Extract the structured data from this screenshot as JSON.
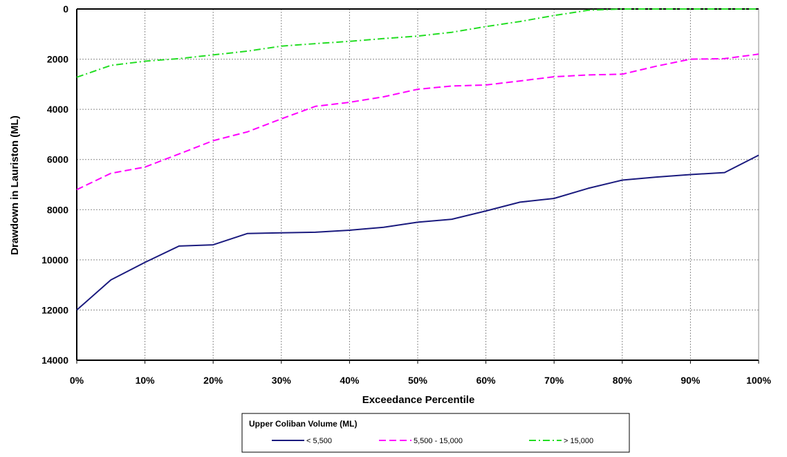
{
  "chart_data": {
    "type": "line",
    "title": "",
    "xlabel": "Exceedance Percentile",
    "ylabel": "Drawdown in  Lauriston (ML)",
    "x": [
      0,
      5,
      10,
      15,
      20,
      25,
      30,
      35,
      40,
      45,
      50,
      55,
      60,
      65,
      70,
      75,
      80,
      85,
      90,
      95,
      100
    ],
    "x_tick_values": [
      0,
      10,
      20,
      30,
      40,
      50,
      60,
      70,
      80,
      90,
      100
    ],
    "x_tick_labels": [
      "0%",
      "10%",
      "20%",
      "30%",
      "40%",
      "50%",
      "60%",
      "70%",
      "80%",
      "90%",
      "100%"
    ],
    "xlim": [
      0,
      100
    ],
    "y_tick_values": [
      0,
      2000,
      4000,
      6000,
      8000,
      10000,
      12000,
      14000
    ],
    "y_tick_labels": [
      "0",
      "2000",
      "4000",
      "6000",
      "8000",
      "10000",
      "12000",
      "14000"
    ],
    "ylim": [
      0,
      14000
    ],
    "y_inverted": true,
    "grid": true,
    "legend": {
      "title": "Upper Coliban Volume (ML)",
      "placement": "bottom-center"
    },
    "series": [
      {
        "name": "< 5,500",
        "color": "#1a1a7e",
        "style": "solid",
        "values": [
          12000,
          10800,
          10100,
          9450,
          9400,
          8950,
          8920,
          8900,
          8820,
          8700,
          8500,
          8380,
          8050,
          7700,
          7550,
          7150,
          6820,
          6700,
          6600,
          6520,
          5830
        ]
      },
      {
        "name": "5,500 - 15,000",
        "color": "#ff00ff",
        "style": "dashed",
        "values": [
          7200,
          6550,
          6300,
          5780,
          5250,
          4900,
          4380,
          3880,
          3720,
          3500,
          3200,
          3070,
          3030,
          2870,
          2700,
          2630,
          2600,
          2280,
          2000,
          1980,
          1800
        ]
      },
      {
        "name": "> 15,000",
        "color": "#22dd22",
        "style": "dashdot",
        "values": [
          2720,
          2250,
          2080,
          1980,
          1830,
          1680,
          1480,
          1380,
          1290,
          1180,
          1080,
          930,
          700,
          500,
          260,
          50,
          0,
          0,
          0,
          0,
          0
        ]
      }
    ]
  }
}
